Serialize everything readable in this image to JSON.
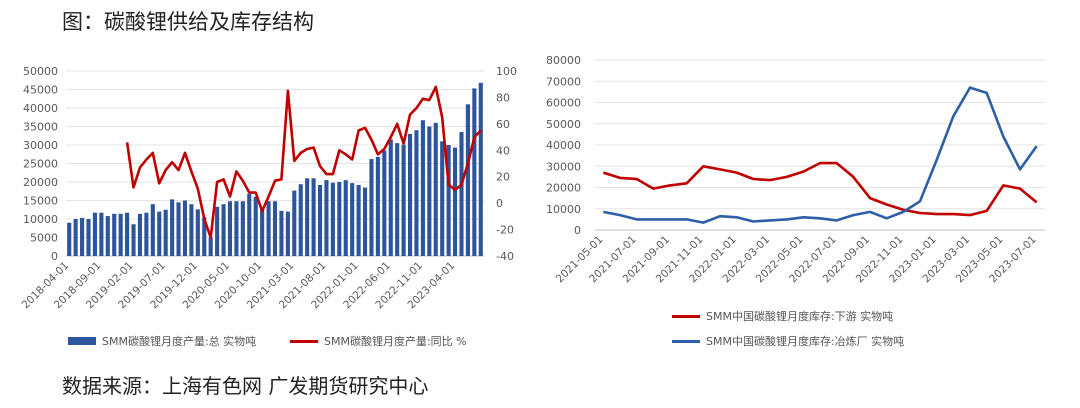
{
  "title": "图：碳酸锂供给及库存结构",
  "source": "数据来源：上海有色网  广发期货研究中心",
  "colors": {
    "bar": "#2e559b",
    "red": "#c00000",
    "blue": "#2e5ea6"
  },
  "chart_data": [
    {
      "type": "bar+line",
      "x_tick_labels": [
        "2018-04-01",
        "2018-09-01",
        "2019-02-01",
        "2019-07-01",
        "2019-12-01",
        "2020-05-01",
        "2020-10-01",
        "2021-03-01",
        "2021-08-01",
        "2022-01-01",
        "2022-06-01",
        "2022-11-01",
        "2023-04-01"
      ],
      "ylim_left": [
        0,
        50000
      ],
      "yticks_left": [
        "0",
        "5000",
        "10000",
        "15000",
        "20000",
        "25000",
        "30000",
        "35000",
        "40000",
        "45000",
        "50000"
      ],
      "ylim_right": [
        -40,
        100
      ],
      "yticks_right": [
        "-40",
        "-20",
        "0",
        "20",
        "40",
        "60",
        "80",
        "100"
      ],
      "series": [
        {
          "name": "SMM碳酸锂月度产量:总 实物吨",
          "type": "bar",
          "values": [
            9000,
            10000,
            10300,
            10000,
            11700,
            11700,
            10800,
            11400,
            11400,
            11700,
            8600,
            11400,
            11700,
            14000,
            12000,
            12500,
            15300,
            14500,
            15000,
            14000,
            12600,
            10500,
            5000,
            13300,
            14000,
            14800,
            14800,
            14800,
            16800,
            16000,
            13000,
            14800,
            14800,
            12200,
            12000,
            17700,
            19400,
            21000,
            21000,
            19200,
            20500,
            19800,
            20000,
            20500,
            19700,
            19200,
            18500,
            26200,
            26800,
            28500,
            31500,
            30500,
            30000,
            33000,
            34000,
            36700,
            35000,
            36000,
            31000,
            30000,
            29300,
            33500,
            41000,
            45300,
            46800
          ]
        },
        {
          "name": "SMM碳酸锂月度产量:同比 %",
          "type": "line",
          "axis": "right",
          "values": [
            null,
            null,
            null,
            null,
            null,
            null,
            null,
            null,
            null,
            46,
            12,
            27,
            33,
            38,
            15,
            25,
            31,
            25,
            38,
            24,
            11,
            -12,
            -26,
            16,
            18,
            5,
            24,
            17,
            8,
            8,
            -6,
            5,
            17,
            18,
            85,
            32,
            38,
            41,
            42,
            28,
            22,
            22,
            40,
            37,
            33,
            55,
            57,
            48,
            37,
            41,
            50,
            60,
            45,
            67,
            72,
            79,
            78,
            88,
            65,
            14,
            10,
            14,
            30,
            50,
            55
          ]
        }
      ]
    },
    {
      "type": "line",
      "x_tick_labels": [
        "2021-05-01",
        "2021-07-01",
        "2021-09-01",
        "2021-11-01",
        "2022-01-01",
        "2022-03-01",
        "2022-05-01",
        "2022-07-01",
        "2022-09-01",
        "2022-11-01",
        "2023-01-01",
        "2023-03-01",
        "2023-05-01",
        "2023-07-01"
      ],
      "ylim": [
        0,
        80000
      ],
      "yticks": [
        "0",
        "10000",
        "20000",
        "30000",
        "40000",
        "50000",
        "60000",
        "70000",
        "80000"
      ],
      "series": [
        {
          "name": "SMM中国碳酸锂月度库存:下游 实物吨",
          "values": [
            27000,
            24500,
            24000,
            19500,
            21000,
            22000,
            30000,
            28500,
            27000,
            24000,
            23500,
            25000,
            27500,
            31500,
            31500,
            25000,
            15000,
            12000,
            9500,
            8000,
            7500,
            7500,
            7000,
            9000,
            21000,
            19500,
            13000
          ]
        },
        {
          "name": "SMM中国碳酸锂月度库存:冶炼厂 实物吨",
          "values": [
            8500,
            7000,
            5000,
            5000,
            5000,
            5000,
            3500,
            6500,
            6000,
            4000,
            4500,
            5000,
            6000,
            5500,
            4500,
            7000,
            8500,
            5500,
            8500,
            13500,
            33000,
            53500,
            67000,
            64500,
            44000,
            28500,
            39500
          ]
        }
      ]
    }
  ]
}
